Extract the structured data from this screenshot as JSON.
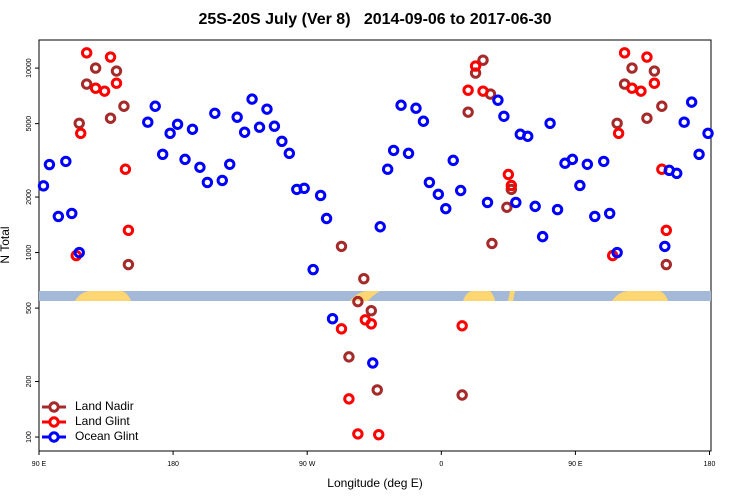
{
  "chart_data": {
    "type": "scatter",
    "title": "25S-20S July (Ver 8)   2014-09-06 to 2017-06-30",
    "x_label": "Longitude (deg E)",
    "y_label": "N Total",
    "xlim": [
      90,
      541
    ],
    "ylim": [
      84,
      14200
    ],
    "log_y": true,
    "legend": "bottom-left",
    "xticks": [
      {
        "value": 90,
        "label": "90 E"
      },
      {
        "value": 180,
        "label": "180"
      },
      {
        "value": 270,
        "label": "90 W"
      },
      {
        "value": 360,
        "label": "0"
      },
      {
        "value": 450,
        "label": "90 E"
      },
      {
        "value": 540,
        "label": "180"
      }
    ],
    "yticks": [
      100,
      200,
      500,
      1000,
      2000,
      5000,
      10000
    ],
    "series": [
      {
        "name": "Land Nadir",
        "color": "#a52a2a",
        "x": [
          117,
          122,
          128,
          138,
          142,
          147,
          150,
          293,
          298,
          304,
          308,
          313,
          317,
          374,
          378,
          383,
          388,
          393,
          394,
          404,
          407,
          478,
          483,
          488,
          498,
          503,
          508,
          511
        ],
        "values": [
          5020,
          8190,
          10000,
          5350,
          9640,
          6210,
          861,
          1080,
          272,
          542,
          722,
          484,
          180,
          169,
          5770,
          9400,
          11040,
          7230,
          1120,
          1760,
          2200,
          5020,
          8190,
          10000,
          5350,
          9640,
          6210,
          861
        ]
      },
      {
        "name": "Land Glint",
        "color": "#ff0000",
        "x": [
          115,
          118,
          122,
          128,
          134,
          138,
          142,
          148,
          150,
          293,
          298,
          304,
          309,
          313,
          318,
          374,
          378,
          383,
          388,
          405,
          407,
          475,
          479,
          483,
          488,
          494,
          498,
          503,
          508,
          511
        ],
        "values": [
          963,
          4430,
          12100,
          7780,
          7500,
          11480,
          8280,
          2830,
          1320,
          386,
          161,
          104,
          432,
          411,
          103,
          401,
          7590,
          10260,
          7500,
          2650,
          2310,
          963,
          4430,
          12100,
          7780,
          7500,
          11480,
          8280,
          2830,
          1320
        ]
      },
      {
        "name": "Ocean Glint",
        "color": "#0000ff",
        "x": [
          93,
          97,
          103,
          108,
          112,
          117,
          163,
          168,
          173,
          178,
          183,
          188,
          193,
          198,
          203,
          208,
          213,
          218,
          223,
          228,
          233,
          238,
          243,
          248,
          253,
          258,
          263,
          268,
          274,
          279,
          283,
          287,
          314,
          319,
          324,
          328,
          333,
          338,
          343,
          348,
          352,
          358,
          363,
          368,
          373,
          391,
          398,
          402,
          410,
          413,
          418,
          423,
          428,
          433,
          438,
          443,
          448,
          453,
          458,
          463,
          469,
          473,
          478,
          510,
          513,
          518,
          523,
          528,
          533,
          539
        ],
        "values": [
          2300,
          3000,
          1570,
          3120,
          1630,
          1000,
          5090,
          6210,
          3410,
          4430,
          4960,
          3200,
          4660,
          2900,
          2400,
          5690,
          2460,
          3010,
          5420,
          4490,
          6790,
          4780,
          5990,
          4840,
          4010,
          3450,
          2200,
          2230,
          809,
          2040,
          1530,
          438,
          252,
          1380,
          2830,
          3580,
          6290,
          3450,
          6060,
          5150,
          2400,
          2070,
          1730,
          3160,
          2170,
          1870,
          6700,
          5480,
          1870,
          4380,
          4270,
          1780,
          1220,
          5020,
          1710,
          3050,
          3200,
          2310,
          3010,
          1570,
          3120,
          1630,
          1000,
          1080,
          2790,
          2690,
          5090,
          6540,
          3410,
          4430
        ]
      }
    ]
  }
}
